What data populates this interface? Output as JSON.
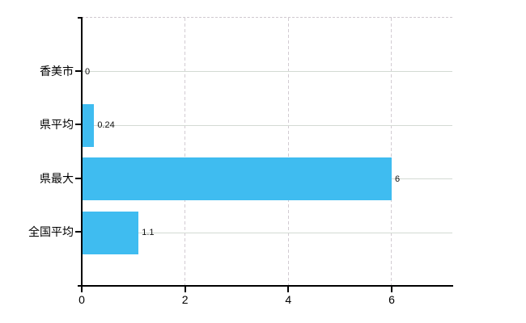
{
  "chart_data": {
    "type": "bar",
    "orientation": "horizontal",
    "title": "",
    "xlabel": "",
    "ylabel": "",
    "categories": [
      "香美市",
      "県平均",
      "県最大",
      "全国平均"
    ],
    "values": [
      0,
      0.24,
      6,
      1.1
    ],
    "value_labels": [
      "0",
      "0.24",
      "6",
      "1.1"
    ],
    "x_tick_values": [
      0,
      2,
      4,
      6
    ],
    "x_tick_labels": [
      "0",
      "2",
      "4",
      "6"
    ],
    "xlim": [
      0,
      7.17
    ],
    "grid": "horizontal solid, vertical dashed, dashed top border",
    "legend": "none",
    "colors": {
      "bar": "#3fbcf0",
      "axis": "#000000",
      "grid_solid": "#d3dad3",
      "grid_dashed": "#d2cbd2",
      "text": "#000000",
      "background": "#ffffff"
    }
  }
}
